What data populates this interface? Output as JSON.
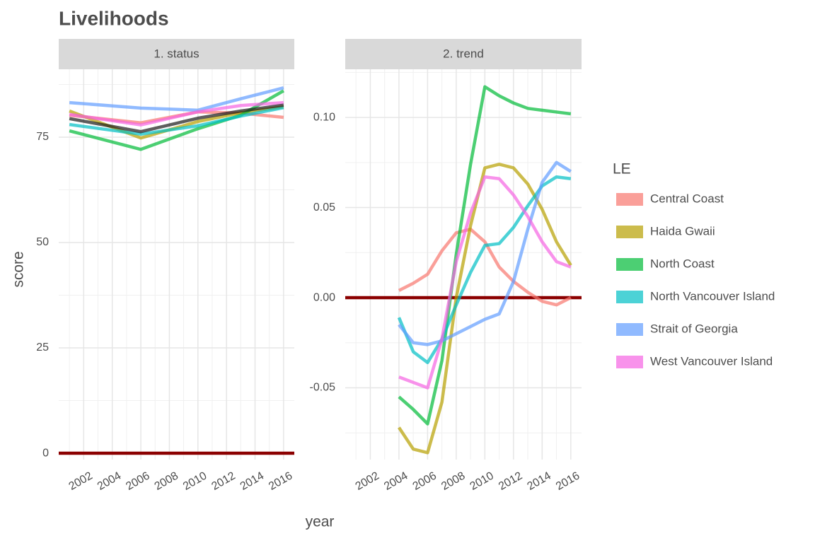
{
  "title": "Livelihoods",
  "x_label": "year",
  "y_label": "score",
  "legend_title": "LE",
  "legend_position": "right",
  "chart_data": [
    {
      "type": "line",
      "title": "1. status",
      "grid": true,
      "x": [
        2001,
        2006,
        2010,
        2013,
        2016
      ],
      "xlim": [
        2000.25,
        2016.75
      ],
      "xticks": [
        2002,
        2004,
        2006,
        2008,
        2010,
        2012,
        2014,
        2016
      ],
      "ylim": [
        -1.5,
        91.1
      ],
      "yticks": [
        0,
        25,
        50,
        75
      ],
      "hline": {
        "value": 0,
        "color": "#8b0000"
      },
      "series": [
        {
          "name": "Central Coast",
          "color": "#f8766d",
          "values": [
            80.2,
            78.4,
            81,
            80.7,
            79.7
          ]
        },
        {
          "name": "Haida Gwaii",
          "color": "#b79f00",
          "values": [
            81.2,
            74.8,
            78.7,
            80.8,
            82.2
          ]
        },
        {
          "name": "North Coast",
          "color": "#00ba38",
          "values": [
            76.5,
            72.1,
            77,
            80.2,
            86
          ]
        },
        {
          "name": "North Vancouver Island",
          "color": "#00bfc4",
          "values": [
            78,
            75.7,
            77.7,
            80,
            82
          ]
        },
        {
          "name": "Strait of Georgia",
          "color": "#619cff",
          "values": [
            83.2,
            81.9,
            81.4,
            84.1,
            86.7
          ]
        },
        {
          "name": "West Vancouver Island",
          "color": "#f564e3",
          "values": [
            80.4,
            77.9,
            81,
            82.5,
            83.2
          ]
        },
        {
          "color": "#1a1a1a",
          "values": [
            79.4,
            76.3,
            79.5,
            81.2,
            82.6
          ]
        }
      ]
    },
    {
      "type": "line",
      "title": "2. trend",
      "grid": true,
      "x": [
        2004,
        2005,
        2006,
        2007,
        2008,
        2009,
        2010,
        2011,
        2012,
        2013,
        2014,
        2015,
        2016
      ],
      "xlim": [
        2000.25,
        2016.75
      ],
      "xticks": [
        2002,
        2004,
        2006,
        2008,
        2010,
        2012,
        2014,
        2016
      ],
      "ylim": [
        -0.0898,
        0.1267
      ],
      "yticks": [
        {
          "value": 0.1,
          "label": "0.10"
        },
        0.05,
        {
          "value": 0,
          "label": "0.00"
        },
        -0.05
      ],
      "hline": {
        "value": 0,
        "color": "#8b0000"
      },
      "series": [
        {
          "color": "#f8766d",
          "values": [
            0.004,
            0.008,
            0.013,
            0.026,
            0.036,
            0.038,
            0.031,
            0.017,
            0.009,
            0.003,
            -0.002,
            -0.004,
            0
          ]
        },
        {
          "color": "#b79f00",
          "values": [
            -0.072,
            -0.084,
            -0.086,
            -0.058,
            0.0,
            0.04,
            0.072,
            0.074,
            0.072,
            0.063,
            0.049,
            0.031,
            0.018
          ]
        },
        {
          "color": "#00ba38",
          "values": [
            -0.055,
            -0.062,
            -0.07,
            -0.035,
            0.024,
            0.074,
            0.117,
            0.112,
            0.108,
            0.105,
            0.104,
            0.103,
            0.102
          ]
        },
        {
          "color": "#00bfc4",
          "values": [
            -0.011,
            -0.03,
            -0.036,
            -0.023,
            -0.004,
            0.014,
            0.029,
            0.03,
            0.039,
            0.051,
            0.062,
            0.067,
            0.066
          ]
        },
        {
          "color": "#619cff",
          "values": [
            -0.015,
            -0.025,
            -0.026,
            -0.024,
            -0.02,
            -0.016,
            -0.012,
            -0.009,
            0.009,
            0.038,
            0.064,
            0.075,
            0.07
          ]
        },
        {
          "color": "#f564e3",
          "values": [
            -0.044,
            -0.047,
            -0.05,
            -0.023,
            0.02,
            0.047,
            0.067,
            0.066,
            0.057,
            0.045,
            0.031,
            0.02,
            0.017
          ]
        }
      ]
    }
  ]
}
